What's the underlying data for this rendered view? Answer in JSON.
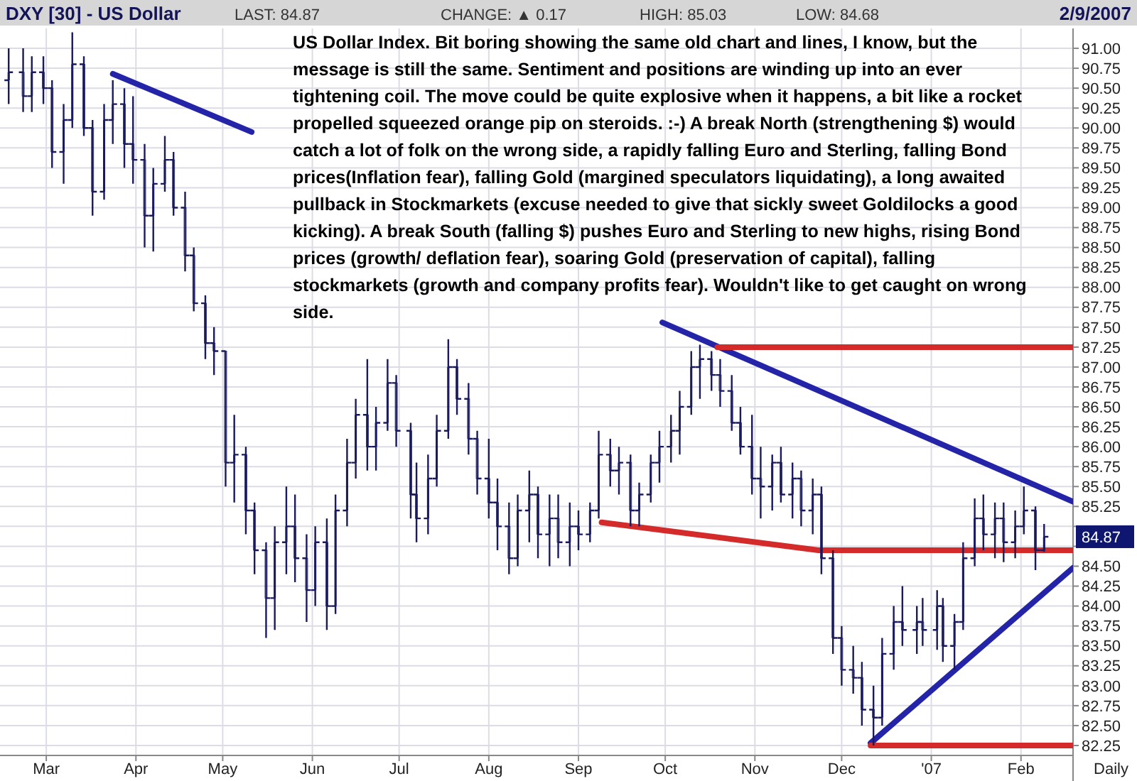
{
  "chart_data": {
    "type": "candlestick",
    "title": "DXY [30] - US Dollar",
    "color": "#1a1a5e",
    "grid": true,
    "xlim": [
      "2006-02-13",
      "2007-02-19"
    ],
    "ylim": [
      82.125,
      91.25
    ],
    "xticks": [
      {
        "value": "2006-03-01",
        "label": "Mar"
      },
      {
        "value": "2006-04-01",
        "label": "Apr"
      },
      {
        "value": "2006-05-01",
        "label": "May"
      },
      {
        "value": "2006-06-01",
        "label": "Jun"
      },
      {
        "value": "2006-07-01",
        "label": "Jul"
      },
      {
        "value": "2006-08-01",
        "label": "Aug"
      },
      {
        "value": "2006-09-01",
        "label": "Sep"
      },
      {
        "value": "2006-10-01",
        "label": "Oct"
      },
      {
        "value": "2006-11-01",
        "label": "Nov"
      },
      {
        "value": "2006-12-01",
        "label": "Dec"
      },
      {
        "value": "2007-01-01",
        "label": "'07"
      },
      {
        "value": "2007-02-01",
        "label": "Feb"
      }
    ],
    "yticks": [
      82.25,
      {
        "value": 82.5,
        "label": "82.50"
      },
      82.75,
      {
        "value": 83,
        "label": "83.00"
      },
      83.25,
      {
        "value": 83.5,
        "label": "83.50"
      },
      83.75,
      {
        "value": 84,
        "label": "84.00"
      },
      84.25,
      {
        "value": 84.5,
        "label": "84.50"
      },
      {
        "value": 84.75,
        "label": null
      },
      {
        "value": 85,
        "label": null
      },
      85.25,
      {
        "value": 85.5,
        "label": "85.50"
      },
      85.75,
      {
        "value": 86,
        "label": "86.00"
      },
      86.25,
      {
        "value": 86.5,
        "label": "86.50"
      },
      86.75,
      {
        "value": 87,
        "label": "87.00"
      },
      87.25,
      {
        "value": 87.5,
        "label": "87.50"
      },
      87.75,
      {
        "value": 88,
        "label": "88.00"
      },
      88.25,
      {
        "value": 88.5,
        "label": "88.50"
      },
      88.75,
      {
        "value": 89,
        "label": "89.00"
      },
      89.25,
      {
        "value": 89.5,
        "label": "89.50"
      },
      89.75,
      {
        "value": 90,
        "label": "90.00"
      },
      90.25,
      {
        "value": 90.5,
        "label": "90.50"
      },
      90.75,
      {
        "value": 91,
        "label": "91.00"
      }
    ],
    "x": [
      "2006-02-16",
      "2006-02-21",
      "2006-02-24",
      "2006-02-28",
      "2006-03-03",
      "2006-03-07",
      "2006-03-10",
      "2006-03-14",
      "2006-03-17",
      "2006-03-21",
      "2006-03-24",
      "2006-03-28",
      "2006-03-31",
      "2006-04-04",
      "2006-04-07",
      "2006-04-11",
      "2006-04-14",
      "2006-04-18",
      "2006-04-21",
      "2006-04-25",
      "2006-04-28",
      "2006-05-02",
      "2006-05-05",
      "2006-05-09",
      "2006-05-12",
      "2006-05-16",
      "2006-05-19",
      "2006-05-23",
      "2006-05-26",
      "2006-05-30",
      "2006-06-02",
      "2006-06-06",
      "2006-06-09",
      "2006-06-13",
      "2006-06-16",
      "2006-06-20",
      "2006-06-23",
      "2006-06-27",
      "2006-06-30",
      "2006-07-05",
      "2006-07-07",
      "2006-07-11",
      "2006-07-14",
      "2006-07-18",
      "2006-07-21",
      "2006-07-25",
      "2006-07-28",
      "2006-08-01",
      "2006-08-04",
      "2006-08-08",
      "2006-08-11",
      "2006-08-15",
      "2006-08-18",
      "2006-08-22",
      "2006-08-25",
      "2006-08-29",
      "2006-09-01",
      "2006-09-05",
      "2006-09-08",
      "2006-09-12",
      "2006-09-15",
      "2006-09-19",
      "2006-09-22",
      "2006-09-26",
      "2006-09-29",
      "2006-10-03",
      "2006-10-06",
      "2006-10-10",
      "2006-10-13",
      "2006-10-17",
      "2006-10-20",
      "2006-10-24",
      "2006-10-27",
      "2006-10-31",
      "2006-11-03",
      "2006-11-07",
      "2006-11-10",
      "2006-11-14",
      "2006-11-17",
      "2006-11-21",
      "2006-11-24",
      "2006-11-28",
      "2006-12-01",
      "2006-12-05",
      "2006-12-08",
      "2006-12-12",
      "2006-12-15",
      "2006-12-19",
      "2006-12-22",
      "2006-12-27",
      "2006-12-29",
      "2007-01-03",
      "2007-01-05",
      "2007-01-09",
      "2007-01-12",
      "2007-01-16",
      "2007-01-19",
      "2007-01-23",
      "2007-01-26",
      "2007-01-30",
      "2007-02-02",
      "2007-02-06",
      "2007-02-09"
    ],
    "ohlc": [
      [
        90.6,
        91.0,
        90.3,
        90.7
      ],
      [
        90.7,
        91.0,
        90.2,
        90.4
      ],
      [
        90.4,
        90.9,
        90.2,
        90.7
      ],
      [
        90.7,
        90.9,
        90.3,
        90.5
      ],
      [
        90.5,
        90.6,
        89.5,
        89.7
      ],
      [
        89.7,
        90.3,
        89.3,
        90.1
      ],
      [
        90.1,
        91.2,
        90.0,
        90.8
      ],
      [
        90.8,
        90.9,
        89.9,
        90.0
      ],
      [
        90.0,
        90.1,
        88.9,
        89.2
      ],
      [
        89.2,
        90.3,
        89.1,
        90.1
      ],
      [
        90.1,
        90.6,
        89.8,
        90.3
      ],
      [
        90.3,
        90.5,
        89.5,
        89.8
      ],
      [
        89.8,
        90.4,
        89.3,
        89.6
      ],
      [
        89.6,
        89.8,
        88.5,
        88.9
      ],
      [
        88.9,
        89.5,
        88.45,
        89.3
      ],
      [
        89.3,
        89.9,
        89.2,
        89.6
      ],
      [
        89.6,
        89.7,
        88.9,
        89.0
      ],
      [
        89.0,
        89.2,
        88.2,
        88.4
      ],
      [
        88.4,
        88.5,
        87.7,
        87.8
      ],
      [
        87.8,
        87.9,
        87.1,
        87.3
      ],
      [
        87.3,
        87.5,
        86.9,
        87.2
      ],
      [
        87.2,
        87.2,
        85.5,
        85.8
      ],
      [
        85.8,
        86.4,
        85.3,
        85.9
      ],
      [
        85.9,
        86.0,
        84.9,
        85.2
      ],
      [
        85.2,
        85.3,
        84.4,
        84.7
      ],
      [
        84.7,
        84.8,
        83.6,
        84.1
      ],
      [
        84.1,
        85.0,
        83.7,
        84.8
      ],
      [
        84.8,
        85.5,
        84.4,
        85.0
      ],
      [
        85.0,
        85.4,
        84.3,
        84.6
      ],
      [
        84.6,
        84.9,
        83.8,
        84.2
      ],
      [
        84.2,
        85.0,
        84.0,
        84.8
      ],
      [
        84.8,
        85.1,
        83.7,
        84.0
      ],
      [
        84.0,
        85.4,
        83.9,
        85.2
      ],
      [
        85.2,
        86.1,
        85.0,
        85.8
      ],
      [
        85.8,
        86.6,
        85.6,
        86.4
      ],
      [
        86.4,
        87.1,
        85.7,
        86.0
      ],
      [
        86.0,
        86.5,
        85.7,
        86.3
      ],
      [
        86.3,
        87.1,
        86.2,
        86.8
      ],
      [
        86.8,
        86.9,
        86.0,
        86.2
      ],
      [
        86.2,
        86.3,
        85.1,
        85.4
      ],
      [
        85.4,
        85.8,
        84.8,
        85.1
      ],
      [
        85.1,
        85.9,
        84.9,
        85.6
      ],
      [
        85.6,
        86.4,
        85.5,
        86.2
      ],
      [
        86.2,
        87.35,
        86.1,
        87.0
      ],
      [
        87.0,
        87.1,
        86.4,
        86.6
      ],
      [
        86.6,
        86.8,
        85.9,
        86.1
      ],
      [
        86.1,
        86.2,
        85.4,
        85.6
      ],
      [
        85.6,
        86.1,
        85.1,
        85.3
      ],
      [
        85.3,
        85.6,
        84.7,
        85.0
      ],
      [
        85.0,
        85.3,
        84.4,
        84.6
      ],
      [
        84.6,
        85.4,
        84.5,
        85.2
      ],
      [
        85.2,
        85.7,
        84.8,
        85.4
      ],
      [
        85.4,
        85.5,
        84.6,
        84.9
      ],
      [
        84.9,
        85.4,
        84.5,
        85.1
      ],
      [
        85.1,
        85.4,
        84.6,
        84.8
      ],
      [
        84.8,
        85.3,
        84.5,
        85.0
      ],
      [
        85.0,
        85.2,
        84.7,
        84.9
      ],
      [
        84.9,
        85.3,
        84.8,
        85.2
      ],
      [
        85.2,
        86.2,
        85.1,
        85.9
      ],
      [
        85.9,
        86.1,
        85.5,
        85.7
      ],
      [
        85.7,
        86.0,
        85.4,
        85.8
      ],
      [
        85.8,
        85.9,
        85.0,
        85.2
      ],
      [
        85.2,
        85.55,
        85.0,
        85.4
      ],
      [
        85.4,
        85.9,
        85.3,
        85.8
      ],
      [
        85.8,
        86.2,
        85.55,
        86.0
      ],
      [
        86.0,
        86.4,
        85.8,
        86.2
      ],
      [
        86.2,
        86.7,
        85.9,
        86.5
      ],
      [
        86.5,
        87.2,
        86.4,
        87.0
      ],
      [
        87.0,
        87.28,
        86.6,
        87.1
      ],
      [
        87.1,
        87.2,
        86.7,
        86.9
      ],
      [
        86.9,
        87.1,
        86.5,
        86.7
      ],
      [
        86.7,
        86.9,
        86.2,
        86.3
      ],
      [
        86.3,
        86.5,
        85.9,
        86.0
      ],
      [
        86.0,
        86.4,
        85.4,
        85.6
      ],
      [
        85.6,
        86.0,
        85.1,
        85.5
      ],
      [
        85.5,
        85.9,
        85.2,
        85.8
      ],
      [
        85.8,
        86.0,
        85.3,
        85.4
      ],
      [
        85.4,
        85.8,
        85.1,
        85.6
      ],
      [
        85.6,
        85.7,
        85.0,
        85.2
      ],
      [
        85.2,
        85.6,
        84.9,
        85.4
      ],
      [
        85.4,
        85.5,
        84.4,
        84.6
      ],
      [
        84.6,
        84.7,
        83.4,
        83.6
      ],
      [
        83.6,
        83.75,
        83.0,
        83.2
      ],
      [
        83.2,
        83.5,
        82.9,
        83.1
      ],
      [
        83.1,
        83.3,
        82.5,
        82.7
      ],
      [
        82.7,
        83.0,
        82.25,
        82.6
      ],
      [
        82.6,
        83.6,
        82.5,
        83.4
      ],
      [
        83.4,
        84.0,
        83.2,
        83.8
      ],
      [
        83.8,
        84.25,
        83.5,
        83.7
      ],
      [
        83.7,
        84.0,
        83.4,
        83.8
      ],
      [
        83.8,
        84.1,
        83.5,
        83.7
      ],
      [
        83.7,
        84.2,
        83.45,
        84.0
      ],
      [
        84.0,
        84.1,
        83.3,
        83.5
      ],
      [
        83.5,
        83.9,
        83.2,
        83.8
      ],
      [
        83.8,
        84.8,
        83.7,
        84.6
      ],
      [
        84.6,
        85.35,
        84.5,
        85.1
      ],
      [
        85.1,
        85.4,
        84.7,
        84.9
      ],
      [
        84.9,
        85.3,
        84.6,
        85.1
      ],
      [
        85.1,
        85.3,
        84.55,
        84.8
      ],
      [
        84.8,
        85.2,
        84.6,
        85.0
      ],
      [
        85.0,
        85.5,
        84.9,
        85.2
      ],
      [
        85.2,
        85.25,
        84.45,
        84.7
      ],
      [
        84.7,
        85.03,
        84.68,
        84.87
      ]
    ],
    "series": [
      {
        "type": "line",
        "color": "#2424a8",
        "x": [
          "2006-03-24",
          "2006-05-11"
        ],
        "values": [
          90.68,
          89.95
        ]
      },
      {
        "type": "line",
        "color": "#2424a8",
        "x": [
          "2006-09-30",
          "2007-02-19"
        ],
        "values": [
          87.56,
          85.31
        ]
      },
      {
        "type": "line",
        "color": "#d42a2a",
        "x": [
          "2006-10-19",
          "2007-02-19"
        ],
        "values": [
          87.25,
          87.25
        ]
      },
      {
        "type": "line",
        "color": "#d42a2a",
        "x": [
          "2006-09-09",
          "2006-11-23",
          "2007-02-19"
        ],
        "values": [
          85.05,
          84.7,
          84.7
        ]
      },
      {
        "type": "line",
        "color": "#2424a8",
        "x": [
          "2006-12-11",
          "2007-02-19"
        ],
        "values": [
          82.28,
          84.48
        ]
      },
      {
        "type": "line",
        "color": "#d42a2a",
        "x": [
          "2006-12-11",
          "2007-02-19"
        ],
        "values": [
          82.25,
          82.25
        ]
      }
    ],
    "annotations": [
      "LAST: 84.87",
      "CHANGE: ▲ 0.17",
      "HIGH: 85.03",
      "LOW: 84.68",
      "2/9/2007",
      "US Dollar Index. Bit boring showing the same old chart and lines, I know, but the message is still the same. Sentiment and positions are winding up into an ever tightening coil. The move could be quite explosive when it happens, a bit like a rocket propelled squeezed orange pip on steroids. :-) A break North (strengthening $) would catch a lot of folk on the wrong side, a rapidly falling Euro and Sterling, falling Bond prices(Inflation fear), falling Gold (margined speculators liquidating), a long awaited pullback in Stockmarkets (excuse needed to give that sickly sweet Goldilocks a good kicking). A break South (falling $) pushes Euro and Sterling to new highs, rising Bond prices (growth/ deflation fear), soaring Gold (preservation of capital), falling stockmarkets (growth and company profits fear). Wouldn't like to get caught on wrong side.",
      "Daily",
      "84.87"
    ]
  }
}
